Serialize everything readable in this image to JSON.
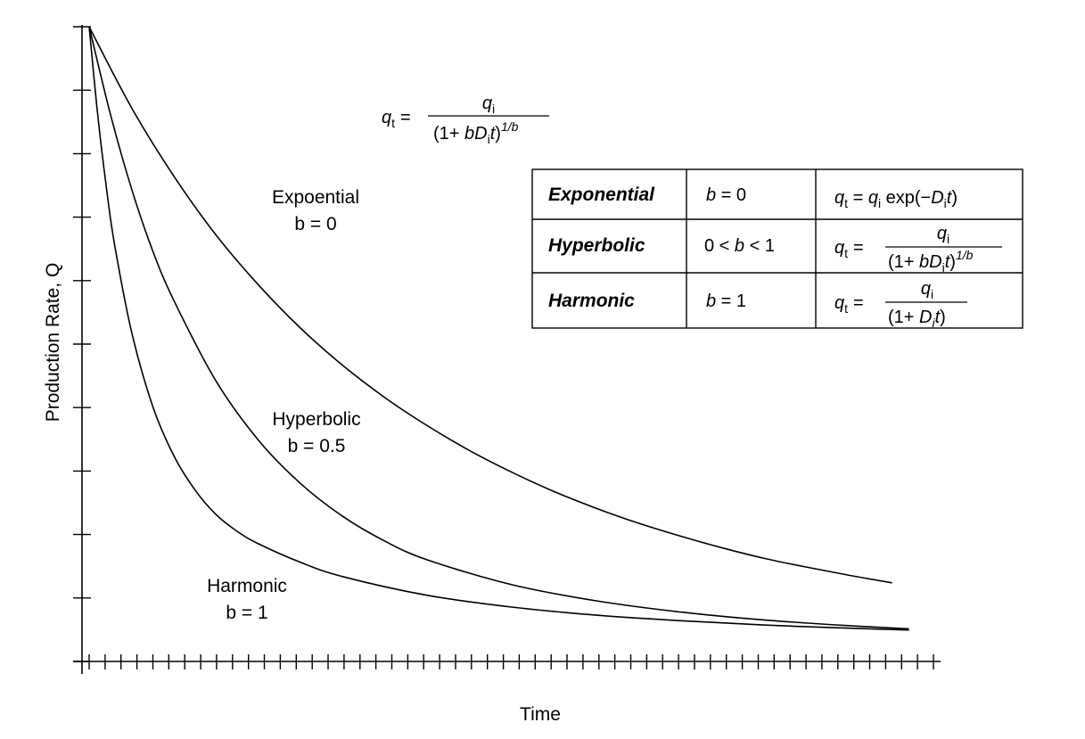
{
  "chart_data": {
    "type": "line",
    "title": "",
    "xlabel": "Time",
    "ylabel": "Production Rate, Q",
    "xlim": [
      0,
      1
    ],
    "ylim": [
      0,
      1
    ],
    "grid": false,
    "series": [
      {
        "name": "Expoential b = 0",
        "label_line1": "Expoential",
        "label_line2": "b = 0",
        "x": [
          0,
          0.05,
          0.1,
          0.15,
          0.2,
          0.25,
          0.3,
          0.35,
          0.4,
          0.45,
          0.5,
          0.55,
          0.6,
          0.65,
          0.7,
          0.75,
          0.8,
          0.85,
          0.9,
          0.95
        ],
        "y": [
          1.0,
          0.87,
          0.76,
          0.665,
          0.585,
          0.515,
          0.455,
          0.403,
          0.358,
          0.318,
          0.283,
          0.252,
          0.225,
          0.201,
          0.18,
          0.161,
          0.144,
          0.13,
          0.117,
          0.105
        ]
      },
      {
        "name": "Hyperbolic b = 0.5",
        "label_line1": "Hyperbolic",
        "label_line2": "b = 0.5",
        "x": [
          0,
          0.025,
          0.05,
          0.075,
          0.1,
          0.15,
          0.2,
          0.25,
          0.3,
          0.35,
          0.4,
          0.5,
          0.6,
          0.7,
          0.8,
          0.9,
          0.97
        ],
        "y": [
          1.0,
          0.86,
          0.74,
          0.64,
          0.56,
          0.43,
          0.335,
          0.265,
          0.212,
          0.172,
          0.142,
          0.102,
          0.076,
          0.058,
          0.045,
          0.036,
          0.031
        ]
      },
      {
        "name": "Harmonic b = 1",
        "label_line1": "Harmonic",
        "label_line2": "b = 1",
        "x": [
          0,
          0.01,
          0.02,
          0.03,
          0.05,
          0.075,
          0.1,
          0.125,
          0.15,
          0.175,
          0.2,
          0.25,
          0.3,
          0.4,
          0.5,
          0.6,
          0.7,
          0.8,
          0.9,
          0.97
        ],
        "y": [
          1.0,
          0.86,
          0.745,
          0.65,
          0.51,
          0.39,
          0.31,
          0.255,
          0.215,
          0.188,
          0.168,
          0.138,
          0.115,
          0.085,
          0.066,
          0.053,
          0.044,
          0.037,
          0.032,
          0.029
        ]
      }
    ],
    "y_tick_count": 10,
    "x_tick_count": 54,
    "general_formula": {
      "lhs": "q",
      "lhs_sub": "t",
      "eq": "=",
      "num": "q",
      "num_sub": "i",
      "den_open": "(1+ ",
      "den_b": "bD",
      "den_b_sub": "i",
      "den_t": "t",
      "den_close": ")",
      "den_sup": "1/b"
    },
    "table": {
      "rows": [
        {
          "name": "Exponential",
          "b_cond": "b = 0",
          "formula": {
            "lhs": "q",
            "lhs_sub": "t",
            "eq": " = ",
            "rhs_q": "q",
            "rhs_q_sub": "i",
            "rhs_exp": " exp(−",
            "rhs_D": "D",
            "rhs_D_sub": "i",
            "rhs_t": "t",
            "rhs_close": ")"
          }
        },
        {
          "name": "Hyperbolic",
          "b_cond": "0 < b < 1",
          "formula": {
            "lhs": "q",
            "lhs_sub": "t",
            "eq": "=",
            "num": "q",
            "num_sub": "i",
            "den_open": "(1+ ",
            "den_b": "bD",
            "den_b_sub": "i",
            "den_t": "t",
            "den_close": ")",
            "den_sup": "1/b"
          }
        },
        {
          "name": "Harmonic",
          "b_cond": "b = 1",
          "formula": {
            "lhs": "q",
            "lhs_sub": "t",
            "eq": "=",
            "num": "q",
            "num_sub": "i",
            "den_open": "(1+ ",
            "den_D": "D",
            "den_D_sub": "i",
            "den_t": "t",
            "den_close": ")"
          }
        }
      ]
    }
  }
}
